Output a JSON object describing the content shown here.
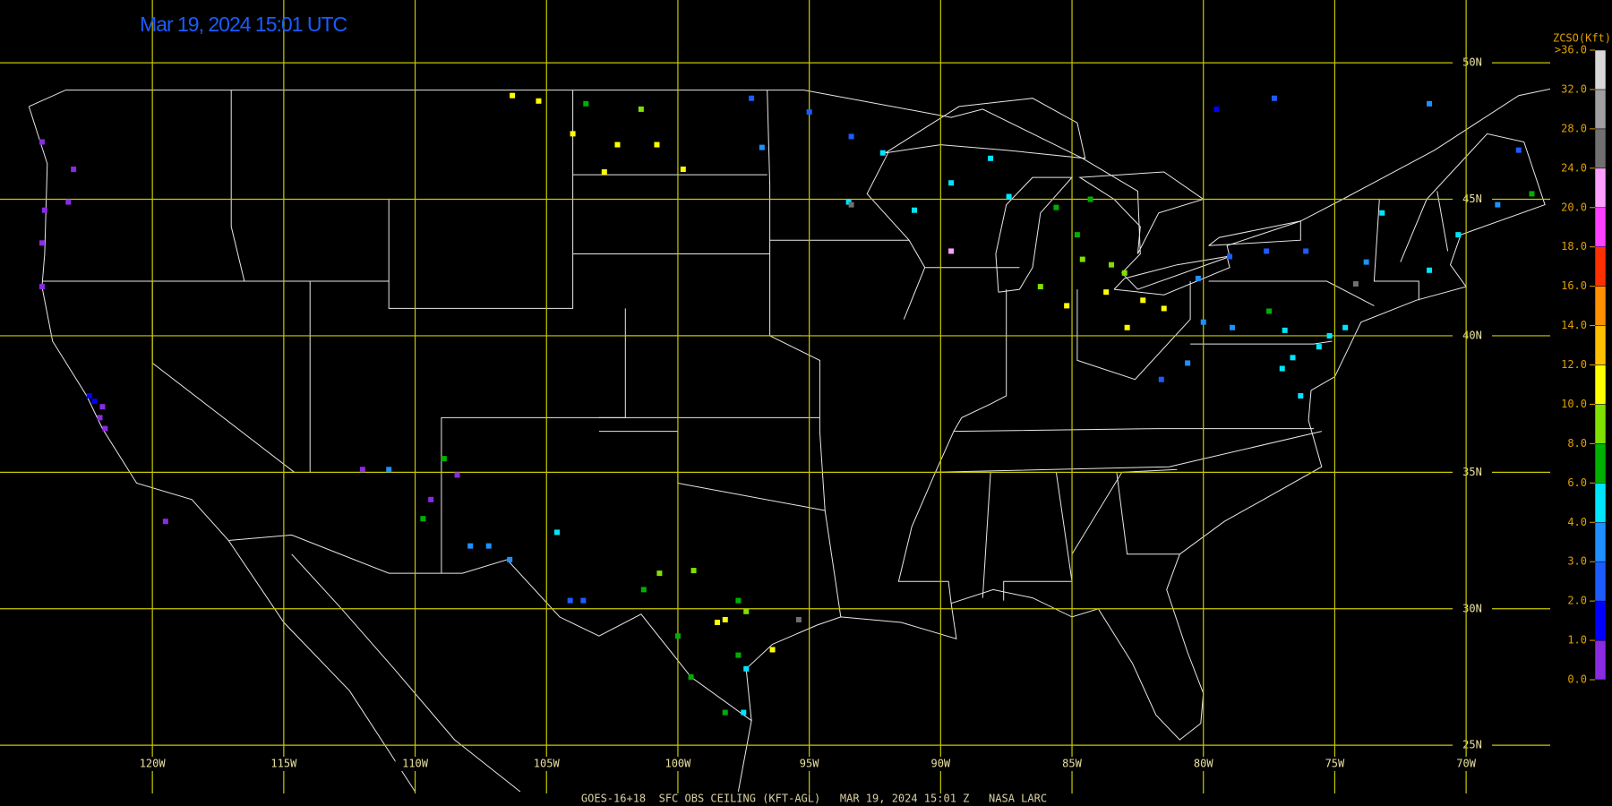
{
  "map": {
    "title": "Mar 19, 2024 15:01 UTC",
    "footer": "GOES-16+18  SFC OBS CEILING (KFT-AGL)   MAR 19, 2024 15:01 Z   NASA LARC",
    "lon_range": [
      -125.8,
      -66.8
    ],
    "lat_range": [
      23.3,
      52.3
    ],
    "lat_lines": [
      {
        "value": 25,
        "label": "25N"
      },
      {
        "value": 30,
        "label": "30N"
      },
      {
        "value": 35,
        "label": "35N"
      },
      {
        "value": 40,
        "label": "40N"
      },
      {
        "value": 45,
        "label": "45N"
      },
      {
        "value": 50,
        "label": "50N"
      }
    ],
    "lon_lines": [
      {
        "value": -120,
        "label": "120W"
      },
      {
        "value": -115,
        "label": "115W"
      },
      {
        "value": -110,
        "label": "110W"
      },
      {
        "value": -105,
        "label": "105W"
      },
      {
        "value": -100,
        "label": "100W"
      },
      {
        "value": -95,
        "label": "95W"
      },
      {
        "value": -90,
        "label": "90W"
      },
      {
        "value": -85,
        "label": "85W"
      },
      {
        "value": -80,
        "label": "80W"
      },
      {
        "value": -75,
        "label": "75W"
      },
      {
        "value": -70,
        "label": "70W"
      }
    ],
    "colorbar": {
      "title": "ZCSO(Kft)",
      "ticks": [
        {
          "value": 0,
          "label": "0.0"
        },
        {
          "value": 1,
          "label": "1.0"
        },
        {
          "value": 2,
          "label": "2.0"
        },
        {
          "value": 3,
          "label": "3.0"
        },
        {
          "value": 4,
          "label": "4.0"
        },
        {
          "value": 6,
          "label": "6.0"
        },
        {
          "value": 8,
          "label": "8.0"
        },
        {
          "value": 10,
          "label": "10.0"
        },
        {
          "value": 12,
          "label": "12.0"
        },
        {
          "value": 14,
          "label": "14.0"
        },
        {
          "value": 16,
          "label": "16.0"
        },
        {
          "value": 18,
          "label": "18.0"
        },
        {
          "value": 20,
          "label": "20.0"
        },
        {
          "value": 24,
          "label": "24.0"
        },
        {
          "value": 28,
          "label": "28.0"
        },
        {
          "value": 32,
          "label": "32.0"
        },
        {
          "value": 36,
          "label": ">36.0"
        }
      ],
      "colors": [
        "#8a2be2",
        "#0000ff",
        "#1c5cff",
        "#1e90ff",
        "#00e5ff",
        "#00b000",
        "#80e000",
        "#ffff00",
        "#ffc000",
        "#ff9000",
        "#ff3000",
        "#ff40ff",
        "#ffa0ff",
        "#707070",
        "#a0a0a0",
        "#d8d8d8"
      ]
    },
    "stations": [
      {
        "lon": -124.2,
        "lat": 47.1,
        "ceiling": 0.5
      },
      {
        "lon": -123.0,
        "lat": 46.1,
        "ceiling": 0.5
      },
      {
        "lon": -124.1,
        "lat": 44.6,
        "ceiling": 0.5
      },
      {
        "lon": -124.2,
        "lat": 43.4,
        "ceiling": 0.5
      },
      {
        "lon": -123.2,
        "lat": 44.9,
        "ceiling": 0.5
      },
      {
        "lon": -124.2,
        "lat": 41.8,
        "ceiling": 0.5
      },
      {
        "lon": -122.4,
        "lat": 37.8,
        "ceiling": 1.5
      },
      {
        "lon": -122.2,
        "lat": 37.6,
        "ceiling": 1.5
      },
      {
        "lon": -121.9,
        "lat": 37.4,
        "ceiling": 0.5
      },
      {
        "lon": -121.8,
        "lat": 36.6,
        "ceiling": 0.5
      },
      {
        "lon": -122.0,
        "lat": 37.0,
        "ceiling": 0.8
      },
      {
        "lon": -119.5,
        "lat": 33.2,
        "ceiling": 0.5
      },
      {
        "lon": -112.0,
        "lat": 35.1,
        "ceiling": 0.5
      },
      {
        "lon": -111.0,
        "lat": 35.1,
        "ceiling": 3
      },
      {
        "lon": -109.4,
        "lat": 34.0,
        "ceiling": 0.5
      },
      {
        "lon": -109.7,
        "lat": 33.3,
        "ceiling": 7
      },
      {
        "lon": -108.9,
        "lat": 35.5,
        "ceiling": 7
      },
      {
        "lon": -108.4,
        "lat": 34.9,
        "ceiling": 0.5
      },
      {
        "lon": -106.4,
        "lat": 31.8,
        "ceiling": 3.5
      },
      {
        "lon": -104.6,
        "lat": 32.8,
        "ceiling": 5
      },
      {
        "lon": -107.9,
        "lat": 32.3,
        "ceiling": 3
      },
      {
        "lon": -107.2,
        "lat": 32.3,
        "ceiling": 3
      },
      {
        "lon": -104.1,
        "lat": 30.3,
        "ceiling": 2.5
      },
      {
        "lon": -103.6,
        "lat": 30.3,
        "ceiling": 2.5
      },
      {
        "lon": -101.3,
        "lat": 30.7,
        "ceiling": 7
      },
      {
        "lon": -100.7,
        "lat": 31.3,
        "ceiling": 8
      },
      {
        "lon": -99.4,
        "lat": 31.4,
        "ceiling": 9
      },
      {
        "lon": -98.5,
        "lat": 29.5,
        "ceiling": 11
      },
      {
        "lon": -98.2,
        "lat": 29.6,
        "ceiling": 11
      },
      {
        "lon": -97.7,
        "lat": 30.3,
        "ceiling": 7
      },
      {
        "lon": -97.4,
        "lat": 29.9,
        "ceiling": 8
      },
      {
        "lon": -97.7,
        "lat": 28.3,
        "ceiling": 7
      },
      {
        "lon": -97.4,
        "lat": 27.8,
        "ceiling": 5
      },
      {
        "lon": -97.5,
        "lat": 26.2,
        "ceiling": 5
      },
      {
        "lon": -98.2,
        "lat": 26.2,
        "ceiling": 7
      },
      {
        "lon": -99.5,
        "lat": 27.5,
        "ceiling": 7
      },
      {
        "lon": -100.0,
        "lat": 29.0,
        "ceiling": 6
      },
      {
        "lon": -96.4,
        "lat": 28.5,
        "ceiling": 10
      },
      {
        "lon": -95.4,
        "lat": 29.6,
        "ceiling": 26
      },
      {
        "lon": -106.3,
        "lat": 48.8,
        "ceiling": 10
      },
      {
        "lon": -105.3,
        "lat": 48.6,
        "ceiling": 10
      },
      {
        "lon": -103.5,
        "lat": 48.5,
        "ceiling": 7
      },
      {
        "lon": -104.0,
        "lat": 47.4,
        "ceiling": 11
      },
      {
        "lon": -102.3,
        "lat": 47.0,
        "ceiling": 10
      },
      {
        "lon": -101.4,
        "lat": 48.3,
        "ceiling": 9
      },
      {
        "lon": -100.8,
        "lat": 47.0,
        "ceiling": 10
      },
      {
        "lon": -102.8,
        "lat": 46.0,
        "ceiling": 11
      },
      {
        "lon": -99.8,
        "lat": 46.1,
        "ceiling": 10
      },
      {
        "lon": -97.2,
        "lat": 48.7,
        "ceiling": 2.5
      },
      {
        "lon": -95.0,
        "lat": 48.2,
        "ceiling": 2.5
      },
      {
        "lon": -93.4,
        "lat": 47.3,
        "ceiling": 2.5
      },
      {
        "lon": -92.2,
        "lat": 46.7,
        "ceiling": 4
      },
      {
        "lon": -96.8,
        "lat": 46.9,
        "ceiling": 3
      },
      {
        "lon": -93.5,
        "lat": 44.9,
        "ceiling": 4
      },
      {
        "lon": -91.0,
        "lat": 44.6,
        "ceiling": 4
      },
      {
        "lon": -89.6,
        "lat": 45.6,
        "ceiling": 4
      },
      {
        "lon": -89.6,
        "lat": 43.1,
        "ceiling": 20
      },
      {
        "lon": -88.1,
        "lat": 46.5,
        "ceiling": 5
      },
      {
        "lon": -87.4,
        "lat": 45.1,
        "ceiling": 4.5
      },
      {
        "lon": -93.4,
        "lat": 44.8,
        "ceiling": 25
      },
      {
        "lon": -85.6,
        "lat": 44.7,
        "ceiling": 6
      },
      {
        "lon": -84.8,
        "lat": 43.7,
        "ceiling": 7
      },
      {
        "lon": -84.6,
        "lat": 42.8,
        "ceiling": 8
      },
      {
        "lon": -83.5,
        "lat": 42.6,
        "ceiling": 8.5
      },
      {
        "lon": -83.0,
        "lat": 42.3,
        "ceiling": 9
      },
      {
        "lon": -84.3,
        "lat": 45.0,
        "ceiling": 6
      },
      {
        "lon": -86.2,
        "lat": 41.8,
        "ceiling": 8
      },
      {
        "lon": -85.2,
        "lat": 41.1,
        "ceiling": 10
      },
      {
        "lon": -83.7,
        "lat": 41.6,
        "ceiling": 10
      },
      {
        "lon": -82.3,
        "lat": 41.3,
        "ceiling": 11
      },
      {
        "lon": -81.5,
        "lat": 41.0,
        "ceiling": 11
      },
      {
        "lon": -82.9,
        "lat": 40.3,
        "ceiling": 10
      },
      {
        "lon": -80.2,
        "lat": 42.1,
        "ceiling": 3
      },
      {
        "lon": -79.0,
        "lat": 42.9,
        "ceiling": 2.5
      },
      {
        "lon": -77.6,
        "lat": 43.1,
        "ceiling": 2.5
      },
      {
        "lon": -76.1,
        "lat": 43.1,
        "ceiling": 2
      },
      {
        "lon": -73.8,
        "lat": 42.7,
        "ceiling": 3.5
      },
      {
        "lon": -76.9,
        "lat": 40.2,
        "ceiling": 4
      },
      {
        "lon": -75.2,
        "lat": 40.0,
        "ceiling": 5
      },
      {
        "lon": -74.6,
        "lat": 40.3,
        "ceiling": 5
      },
      {
        "lon": -75.6,
        "lat": 39.6,
        "ceiling": 5
      },
      {
        "lon": -76.6,
        "lat": 39.2,
        "ceiling": 5
      },
      {
        "lon": -77.0,
        "lat": 38.8,
        "ceiling": 4.5
      },
      {
        "lon": -76.3,
        "lat": 37.8,
        "ceiling": 5
      },
      {
        "lon": -80.0,
        "lat": 40.5,
        "ceiling": 3
      },
      {
        "lon": -80.6,
        "lat": 39.0,
        "ceiling": 3
      },
      {
        "lon": -81.6,
        "lat": 38.4,
        "ceiling": 2.5
      },
      {
        "lon": -78.9,
        "lat": 40.3,
        "ceiling": 3.5
      },
      {
        "lon": -77.5,
        "lat": 40.9,
        "ceiling": 7
      },
      {
        "lon": -74.2,
        "lat": 41.9,
        "ceiling": 25
      },
      {
        "lon": -73.2,
        "lat": 44.5,
        "ceiling": 4
      },
      {
        "lon": -71.4,
        "lat": 42.4,
        "ceiling": 4.5
      },
      {
        "lon": -70.3,
        "lat": 43.7,
        "ceiling": 4
      },
      {
        "lon": -68.8,
        "lat": 44.8,
        "ceiling": 3.5
      },
      {
        "lon": -68.0,
        "lat": 46.8,
        "ceiling": 2.5
      },
      {
        "lon": -67.5,
        "lat": 45.2,
        "ceiling": 6
      },
      {
        "lon": -77.3,
        "lat": 48.7,
        "ceiling": 2
      },
      {
        "lon": -79.5,
        "lat": 48.3,
        "ceiling": 1.5
      },
      {
        "lon": -71.4,
        "lat": 48.5,
        "ceiling": 3
      }
    ]
  }
}
